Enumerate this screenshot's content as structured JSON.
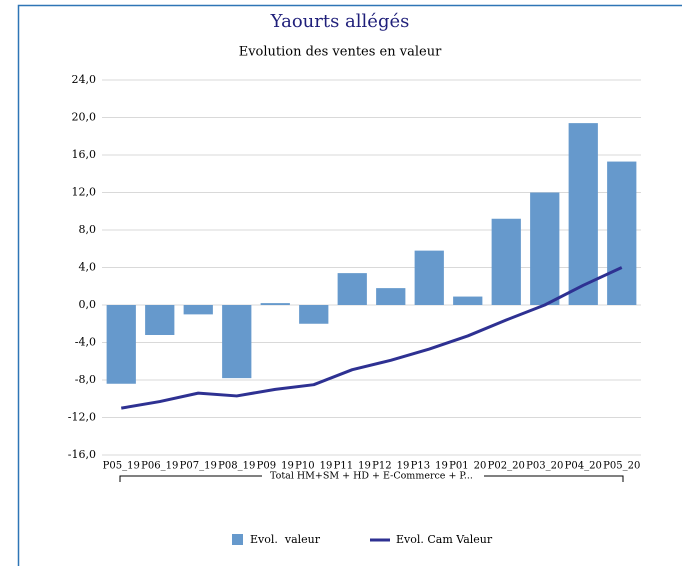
{
  "chart_data": {
    "type": "bar_line",
    "title": "Yaourts allégés",
    "subtitle": "Evolution des ventes en valeur",
    "categories": [
      "P05_19",
      "P06_19",
      "P07_19",
      "P08_19",
      "P09_19",
      "P10_19",
      "P11_19",
      "P12_19",
      "P13_19",
      "P01_20",
      "P02_20",
      "P03_20",
      "P04_20",
      "P05_20"
    ],
    "x_group_label": "Total HM+SM + HD + E-Commerce + P...",
    "series": [
      {
        "name": "Evol.  valeur",
        "type": "bar",
        "color": "#6699cc",
        "values": [
          -8.4,
          -3.2,
          -1.0,
          -7.8,
          0.2,
          -2.0,
          3.4,
          1.8,
          5.8,
          0.9,
          9.2,
          12.0,
          19.4,
          15.3
        ]
      },
      {
        "name": "Evol. Cam Valeur",
        "type": "line",
        "color": "#2e3192",
        "values": [
          -11.0,
          -10.3,
          -9.4,
          -9.7,
          -9.0,
          -8.5,
          -6.9,
          -5.9,
          -4.7,
          -3.3,
          -1.6,
          0.0,
          2.1,
          4.0
        ]
      }
    ],
    "ylim": [
      -16,
      24
    ],
    "yticks": [
      {
        "value": -16,
        "label": "-16,0"
      },
      {
        "value": -12,
        "label": "-12,0"
      },
      {
        "value": -8,
        "label": "-8,0"
      },
      {
        "value": -4,
        "label": "-4,0"
      },
      {
        "value": 0,
        "label": "0,0"
      },
      {
        "value": 4,
        "label": "4,0"
      },
      {
        "value": 8,
        "label": "8,0"
      },
      {
        "value": 12,
        "label": "12,0"
      },
      {
        "value": 16,
        "label": "16,0"
      },
      {
        "value": 20,
        "label": "20,0"
      },
      {
        "value": 24,
        "label": "24,0"
      }
    ],
    "grid": true,
    "legend": "bottom"
  }
}
